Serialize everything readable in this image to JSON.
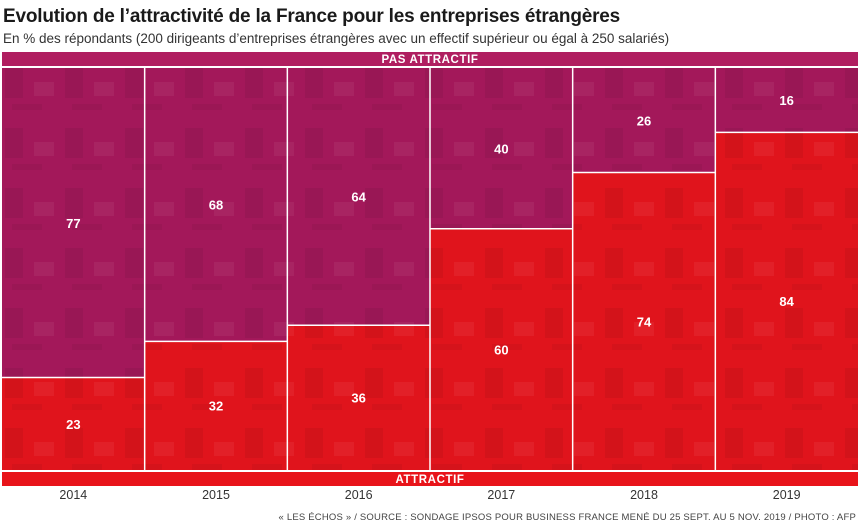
{
  "title": "Evolution de l’attractivité de la France pour les entreprises étrangères",
  "subtitle": "En % des répondants (200 dirigeants d’entreprises étrangères avec un effectif supérieur ou égal à 250 salariés)",
  "source": "« LES ÉCHOS » / SOURCE : SONDAGE IPSOS POUR BUSINESS FRANCE MENÉ DU 25 SEPT. AU 5 NOV. 2019 / PHOTO : AFP",
  "colors": {
    "pas_attractif": "#a3185a",
    "attractif": "#e0141c",
    "band_pas": "#b01e60",
    "band_att": "#e8141a",
    "divider": "#ffffff"
  },
  "chart_data": {
    "type": "bar",
    "stacked": true,
    "categories": [
      "2014",
      "2015",
      "2016",
      "2017",
      "2018",
      "2019"
    ],
    "series": [
      {
        "name": "ATTRACTIF",
        "values": [
          23,
          32,
          36,
          60,
          74,
          84
        ]
      },
      {
        "name": "PAS ATTRACTIF",
        "values": [
          77,
          68,
          64,
          40,
          26,
          16
        ]
      }
    ],
    "ylim": [
      0,
      100
    ],
    "labels_top": "PAS ATTRACTIF",
    "labels_bottom": "ATTRACTIF"
  }
}
